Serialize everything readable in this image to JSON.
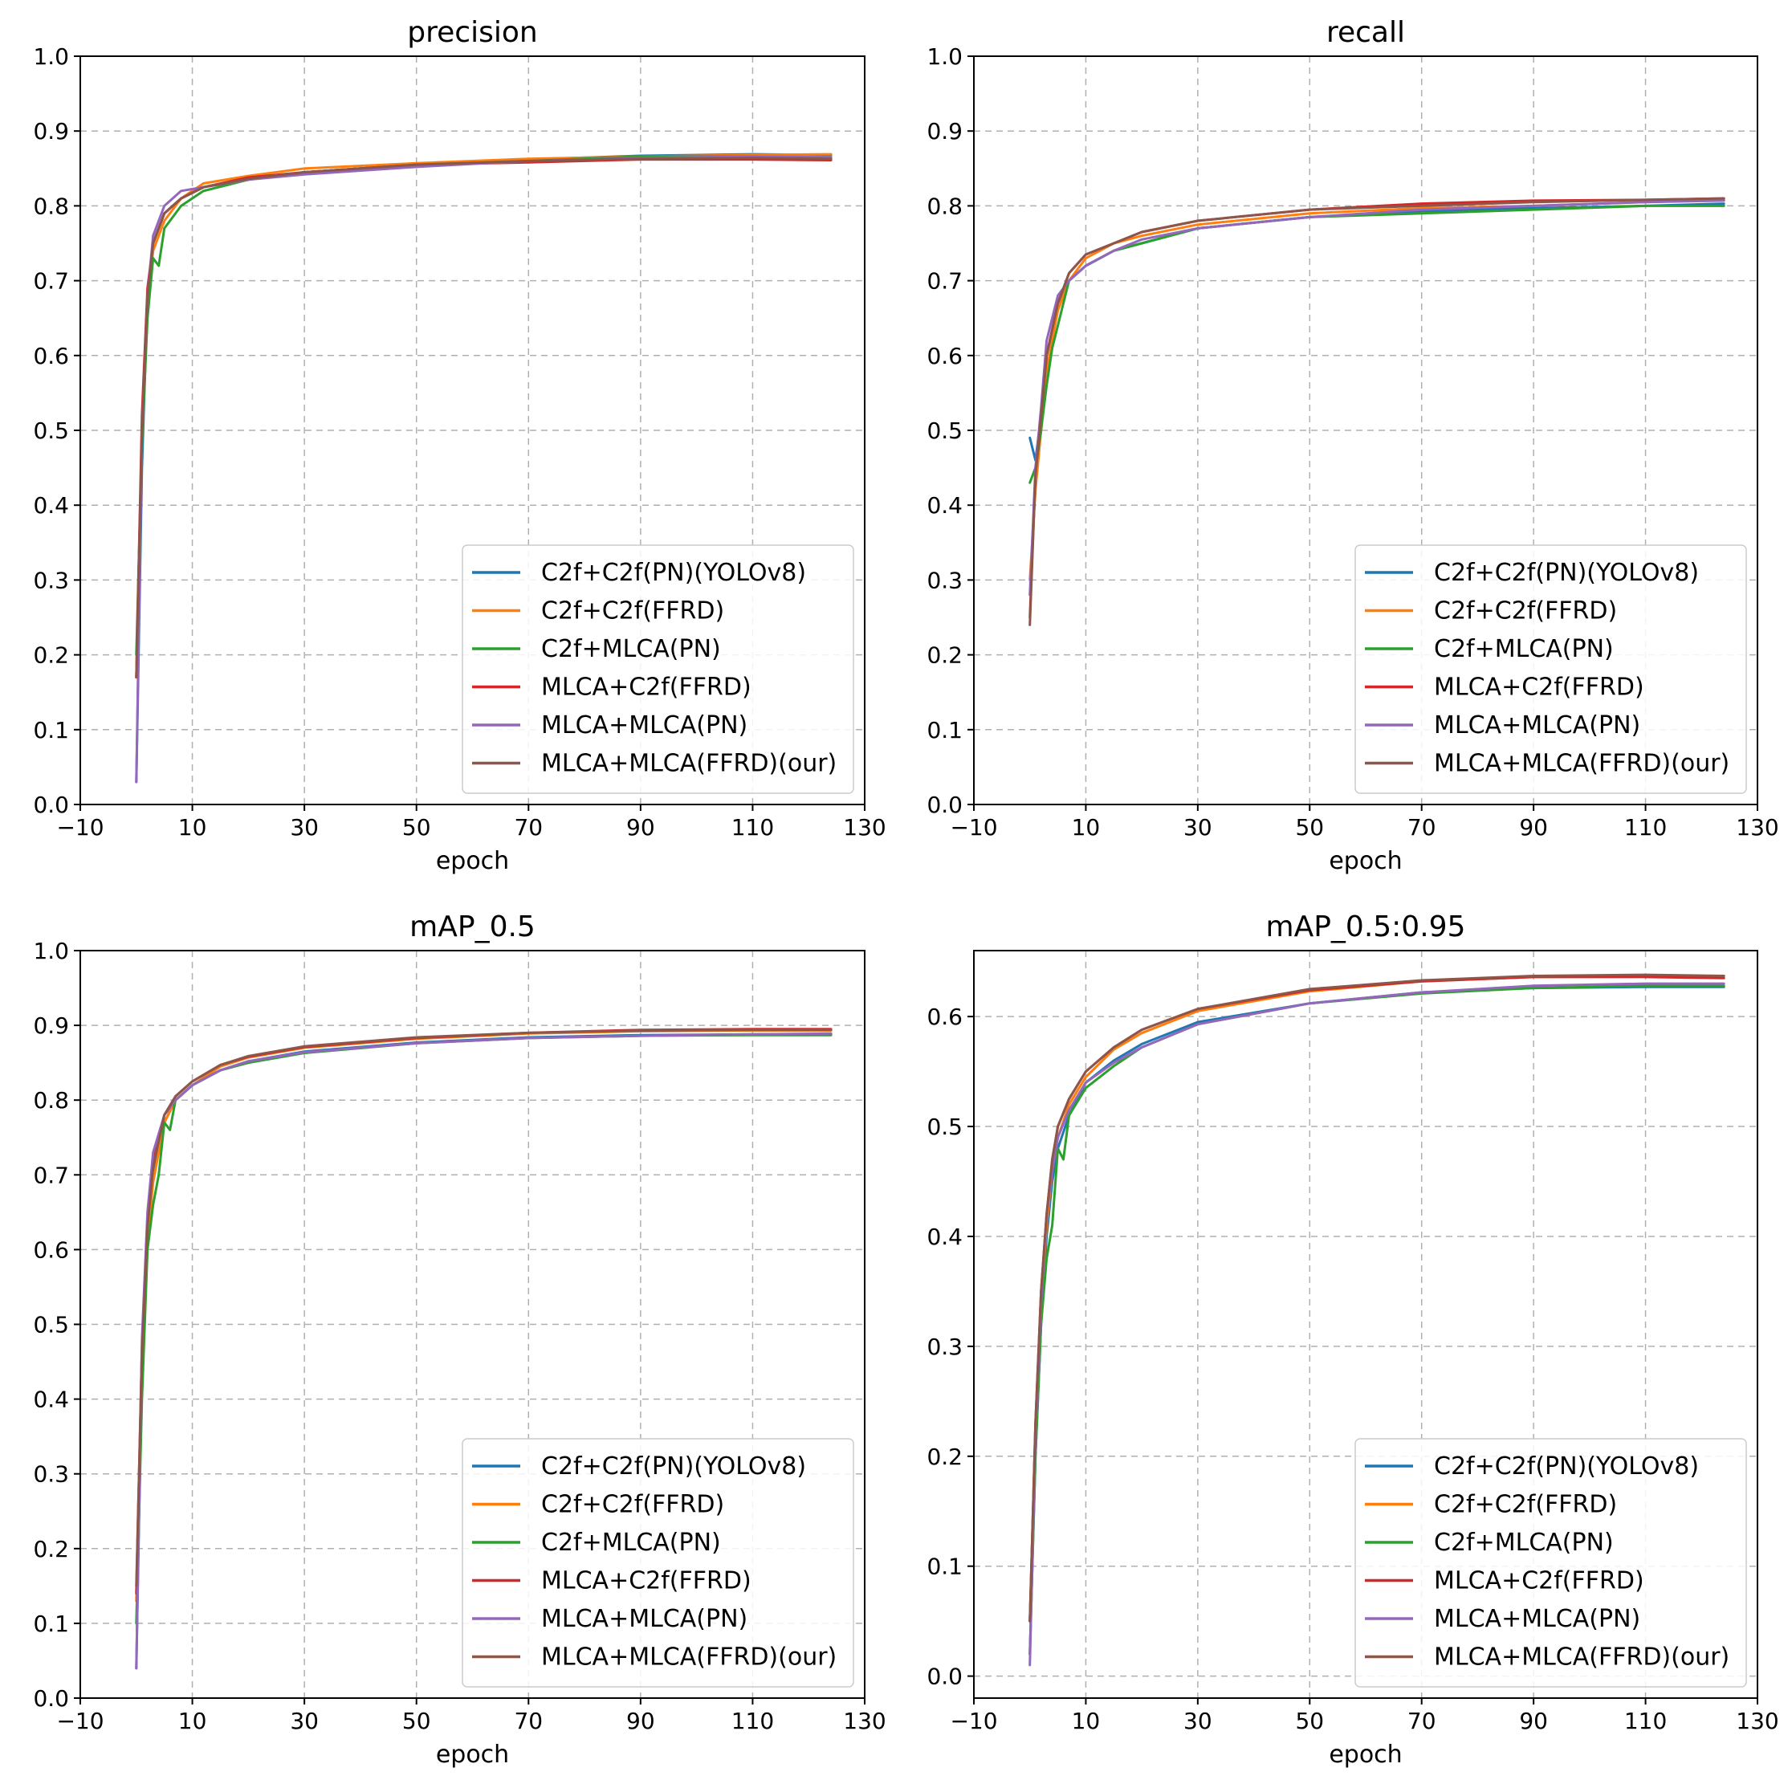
{
  "chart_data": [
    {
      "type": "line",
      "title": "precision",
      "xlabel": "epoch",
      "ylabel": "",
      "xlim": [
        -10,
        130
      ],
      "ylim": [
        0.0,
        1.0
      ],
      "xticks": [
        "−10",
        "10",
        "30",
        "50",
        "70",
        "90",
        "110",
        "130"
      ],
      "yticks": [
        "0.0",
        "0.1",
        "0.2",
        "0.3",
        "0.4",
        "0.5",
        "0.6",
        "0.7",
        "0.8",
        "0.9",
        "1.0"
      ],
      "grid": true,
      "legend": "lower-right",
      "series": [
        {
          "name": "C2f+C2f(PN)(YOLOv8)",
          "color": "#1f77b4",
          "x": [
            0,
            1,
            2,
            3,
            5,
            8,
            12,
            20,
            30,
            50,
            70,
            90,
            110,
            124
          ],
          "y": [
            0.03,
            0.45,
            0.68,
            0.75,
            0.79,
            0.81,
            0.825,
            0.835,
            0.845,
            0.855,
            0.862,
            0.867,
            0.869,
            0.868
          ]
        },
        {
          "name": "C2f+C2f(FFRD)",
          "color": "#ff7f0e",
          "x": [
            0,
            1,
            2,
            3,
            5,
            8,
            12,
            20,
            30,
            50,
            70,
            90,
            110,
            124
          ],
          "y": [
            0.17,
            0.5,
            0.67,
            0.74,
            0.78,
            0.81,
            0.83,
            0.84,
            0.85,
            0.857,
            0.863,
            0.866,
            0.868,
            0.869
          ]
        },
        {
          "name": "C2f+MLCA(PN)",
          "color": "#2ca02c",
          "x": [
            0,
            1,
            2,
            3,
            4,
            5,
            8,
            12,
            20,
            30,
            50,
            70,
            90,
            110,
            124
          ],
          "y": [
            0.2,
            0.48,
            0.65,
            0.73,
            0.72,
            0.77,
            0.8,
            0.82,
            0.835,
            0.845,
            0.855,
            0.86,
            0.866,
            0.866,
            0.865
          ]
        },
        {
          "name": "MLCA+C2f(FFRD)",
          "color": "#d62728",
          "x": [
            0,
            1,
            2,
            3,
            5,
            8,
            12,
            20,
            30,
            50,
            70,
            90,
            110,
            124
          ],
          "y": [
            0.17,
            0.52,
            0.69,
            0.75,
            0.79,
            0.81,
            0.825,
            0.838,
            0.845,
            0.855,
            0.858,
            0.862,
            0.862,
            0.861
          ]
        },
        {
          "name": "MLCA+MLCA(PN)",
          "color": "#9467bd",
          "x": [
            0,
            1,
            2,
            3,
            5,
            8,
            12,
            20,
            30,
            50,
            70,
            90,
            110,
            124
          ],
          "y": [
            0.03,
            0.5,
            0.68,
            0.76,
            0.8,
            0.82,
            0.825,
            0.835,
            0.842,
            0.852,
            0.86,
            0.864,
            0.866,
            0.865
          ]
        },
        {
          "name": "MLCA+MLCA(FFRD)(our)",
          "color": "#8c564b",
          "x": [
            0,
            1,
            2,
            3,
            5,
            8,
            12,
            20,
            30,
            50,
            70,
            90,
            110,
            124
          ],
          "y": [
            0.17,
            0.5,
            0.68,
            0.75,
            0.79,
            0.81,
            0.825,
            0.836,
            0.845,
            0.855,
            0.86,
            0.863,
            0.864,
            0.863
          ]
        }
      ]
    },
    {
      "type": "line",
      "title": "recall",
      "xlabel": "epoch",
      "ylabel": "",
      "xlim": [
        -10,
        130
      ],
      "ylim": [
        0.0,
        1.0
      ],
      "xticks": [
        "−10",
        "10",
        "30",
        "50",
        "70",
        "90",
        "110",
        "130"
      ],
      "yticks": [
        "0.0",
        "0.1",
        "0.2",
        "0.3",
        "0.4",
        "0.5",
        "0.6",
        "0.7",
        "0.8",
        "0.9",
        "1.0"
      ],
      "grid": true,
      "legend": "lower-right",
      "series": [
        {
          "name": "C2f+C2f(PN)(YOLOv8)",
          "color": "#1f77b4",
          "x": [
            0,
            1,
            2,
            3,
            5,
            7,
            10,
            15,
            20,
            30,
            50,
            70,
            90,
            110,
            124
          ],
          "y": [
            0.49,
            0.46,
            0.52,
            0.6,
            0.67,
            0.7,
            0.72,
            0.74,
            0.75,
            0.77,
            0.785,
            0.793,
            0.797,
            0.8,
            0.803
          ]
        },
        {
          "name": "C2f+C2f(FFRD)",
          "color": "#ff7f0e",
          "x": [
            0,
            1,
            2,
            3,
            5,
            7,
            10,
            15,
            20,
            30,
            50,
            70,
            90,
            110,
            124
          ],
          "y": [
            0.3,
            0.42,
            0.5,
            0.58,
            0.66,
            0.7,
            0.73,
            0.75,
            0.76,
            0.775,
            0.79,
            0.797,
            0.8,
            0.805,
            0.808
          ]
        },
        {
          "name": "C2f+MLCA(PN)",
          "color": "#2ca02c",
          "x": [
            0,
            1,
            2,
            3,
            4,
            5,
            6,
            7,
            10,
            15,
            20,
            30,
            50,
            70,
            90,
            110,
            124
          ],
          "y": [
            0.43,
            0.45,
            0.5,
            0.56,
            0.61,
            0.64,
            0.67,
            0.7,
            0.72,
            0.74,
            0.75,
            0.77,
            0.785,
            0.79,
            0.795,
            0.8,
            0.8
          ]
        },
        {
          "name": "MLCA+C2f(FFRD)",
          "color": "#d62728",
          "x": [
            0,
            1,
            2,
            3,
            5,
            7,
            10,
            15,
            20,
            30,
            50,
            70,
            90,
            110,
            124
          ],
          "y": [
            0.25,
            0.44,
            0.52,
            0.6,
            0.67,
            0.71,
            0.735,
            0.75,
            0.765,
            0.78,
            0.795,
            0.803,
            0.807,
            0.808,
            0.81
          ]
        },
        {
          "name": "MLCA+MLCA(PN)",
          "color": "#9467bd",
          "x": [
            0,
            1,
            2,
            3,
            5,
            7,
            10,
            15,
            20,
            30,
            50,
            70,
            90,
            110,
            124
          ],
          "y": [
            0.28,
            0.45,
            0.53,
            0.62,
            0.68,
            0.7,
            0.72,
            0.74,
            0.755,
            0.77,
            0.785,
            0.795,
            0.8,
            0.805,
            0.807
          ]
        },
        {
          "name": "MLCA+MLCA(FFRD)(our)",
          "color": "#8c564b",
          "x": [
            0,
            1,
            2,
            3,
            5,
            7,
            10,
            15,
            20,
            30,
            50,
            70,
            90,
            110,
            124
          ],
          "y": [
            0.24,
            0.44,
            0.52,
            0.6,
            0.67,
            0.71,
            0.735,
            0.75,
            0.765,
            0.78,
            0.795,
            0.8,
            0.805,
            0.808,
            0.81
          ]
        }
      ]
    },
    {
      "type": "line",
      "title": "mAP_0.5",
      "xlabel": "epoch",
      "ylabel": "",
      "xlim": [
        -10,
        130
      ],
      "ylim": [
        0.0,
        1.0
      ],
      "xticks": [
        "−10",
        "10",
        "30",
        "50",
        "70",
        "90",
        "110",
        "130"
      ],
      "yticks": [
        "0.0",
        "0.1",
        "0.2",
        "0.3",
        "0.4",
        "0.5",
        "0.6",
        "0.7",
        "0.8",
        "0.9",
        "1.0"
      ],
      "grid": true,
      "legend": "lower-right",
      "series": [
        {
          "name": "C2f+C2f(PN)(YOLOv8)",
          "color": "#1f77b4",
          "x": [
            0,
            1,
            2,
            3,
            5,
            7,
            10,
            15,
            20,
            30,
            50,
            70,
            90,
            110,
            124
          ],
          "y": [
            0.04,
            0.45,
            0.63,
            0.7,
            0.77,
            0.8,
            0.82,
            0.84,
            0.852,
            0.865,
            0.877,
            0.884,
            0.887,
            0.888,
            0.888
          ]
        },
        {
          "name": "C2f+C2f(FFRD)",
          "color": "#ff7f0e",
          "x": [
            0,
            1,
            2,
            3,
            5,
            7,
            10,
            15,
            20,
            30,
            50,
            70,
            90,
            110,
            124
          ],
          "y": [
            0.13,
            0.43,
            0.61,
            0.69,
            0.77,
            0.8,
            0.82,
            0.845,
            0.857,
            0.87,
            0.882,
            0.889,
            0.892,
            0.893,
            0.893
          ]
        },
        {
          "name": "C2f+MLCA(PN)",
          "color": "#2ca02c",
          "x": [
            0,
            1,
            2,
            3,
            4,
            5,
            6,
            7,
            10,
            15,
            20,
            30,
            50,
            70,
            90,
            110,
            124
          ],
          "y": [
            0.1,
            0.4,
            0.6,
            0.66,
            0.7,
            0.77,
            0.76,
            0.8,
            0.82,
            0.84,
            0.85,
            0.863,
            0.876,
            0.883,
            0.886,
            0.887,
            0.887
          ]
        },
        {
          "name": "MLCA+C2f(FFRD)",
          "color": "#d62728",
          "x": [
            0,
            1,
            2,
            3,
            5,
            7,
            10,
            15,
            20,
            30,
            50,
            70,
            90,
            110,
            124
          ],
          "y": [
            0.14,
            0.47,
            0.64,
            0.72,
            0.78,
            0.805,
            0.825,
            0.847,
            0.858,
            0.871,
            0.883,
            0.89,
            0.894,
            0.895,
            0.895
          ]
        },
        {
          "name": "MLCA+MLCA(PN)",
          "color": "#9467bd",
          "x": [
            0,
            1,
            2,
            3,
            5,
            7,
            10,
            15,
            20,
            30,
            50,
            70,
            90,
            110,
            124
          ],
          "y": [
            0.04,
            0.48,
            0.65,
            0.73,
            0.78,
            0.8,
            0.82,
            0.84,
            0.852,
            0.864,
            0.876,
            0.883,
            0.886,
            0.888,
            0.889
          ]
        },
        {
          "name": "MLCA+MLCA(FFRD)(our)",
          "color": "#8c564b",
          "x": [
            0,
            1,
            2,
            3,
            5,
            7,
            10,
            15,
            20,
            30,
            50,
            70,
            90,
            110,
            124
          ],
          "y": [
            0.15,
            0.46,
            0.63,
            0.71,
            0.78,
            0.805,
            0.825,
            0.847,
            0.859,
            0.872,
            0.884,
            0.89,
            0.893,
            0.894,
            0.894
          ]
        }
      ]
    },
    {
      "type": "line",
      "title": "mAP_0.5:0.95",
      "xlabel": "epoch",
      "ylabel": "",
      "xlim": [
        -10,
        130
      ],
      "ylim": [
        -0.02,
        0.66
      ],
      "xticks": [
        "−10",
        "10",
        "30",
        "50",
        "70",
        "90",
        "110",
        "130"
      ],
      "yticks": [
        "0.0",
        "0.1",
        "0.2",
        "0.3",
        "0.4",
        "0.5",
        "0.6"
      ],
      "grid": true,
      "legend": "lower-right",
      "series": [
        {
          "name": "C2f+C2f(PN)(YOLOv8)",
          "color": "#1f77b4",
          "x": [
            0,
            1,
            2,
            3,
            4,
            5,
            7,
            10,
            15,
            20,
            30,
            50,
            70,
            90,
            110,
            124
          ],
          "y": [
            0.02,
            0.2,
            0.32,
            0.4,
            0.45,
            0.48,
            0.51,
            0.54,
            0.56,
            0.575,
            0.595,
            0.612,
            0.622,
            0.626,
            0.627,
            0.627
          ]
        },
        {
          "name": "C2f+C2f(FFRD)",
          "color": "#ff7f0e",
          "x": [
            0,
            1,
            2,
            3,
            4,
            5,
            7,
            10,
            15,
            20,
            30,
            50,
            70,
            90,
            110,
            124
          ],
          "y": [
            0.05,
            0.22,
            0.34,
            0.41,
            0.46,
            0.49,
            0.52,
            0.545,
            0.57,
            0.585,
            0.605,
            0.623,
            0.632,
            0.636,
            0.637,
            0.637
          ]
        },
        {
          "name": "C2f+MLCA(PN)",
          "color": "#2ca02c",
          "x": [
            0,
            1,
            2,
            3,
            4,
            5,
            6,
            7,
            10,
            15,
            20,
            30,
            50,
            70,
            90,
            110,
            124
          ],
          "y": [
            0.02,
            0.2,
            0.32,
            0.38,
            0.41,
            0.48,
            0.47,
            0.51,
            0.535,
            0.555,
            0.572,
            0.593,
            0.612,
            0.621,
            0.626,
            0.628,
            0.628
          ]
        },
        {
          "name": "MLCA+C2f(FFRD)",
          "color": "#d62728",
          "x": [
            0,
            1,
            2,
            3,
            4,
            5,
            7,
            10,
            15,
            20,
            30,
            50,
            70,
            90,
            110,
            124
          ],
          "y": [
            0.05,
            0.23,
            0.35,
            0.42,
            0.47,
            0.5,
            0.525,
            0.55,
            0.572,
            0.588,
            0.607,
            0.624,
            0.632,
            0.636,
            0.636,
            0.635
          ]
        },
        {
          "name": "MLCA+MLCA(PN)",
          "color": "#9467bd",
          "x": [
            0,
            1,
            2,
            3,
            4,
            5,
            7,
            10,
            15,
            20,
            30,
            50,
            70,
            90,
            110,
            124
          ],
          "y": [
            0.01,
            0.22,
            0.34,
            0.42,
            0.46,
            0.49,
            0.515,
            0.54,
            0.558,
            0.572,
            0.593,
            0.612,
            0.622,
            0.628,
            0.63,
            0.63
          ]
        },
        {
          "name": "MLCA+MLCA(FFRD)(our)",
          "color": "#8c564b",
          "x": [
            0,
            1,
            2,
            3,
            4,
            5,
            7,
            10,
            15,
            20,
            30,
            50,
            70,
            90,
            110,
            124
          ],
          "y": [
            0.05,
            0.23,
            0.35,
            0.42,
            0.47,
            0.5,
            0.525,
            0.55,
            0.572,
            0.588,
            0.607,
            0.625,
            0.633,
            0.637,
            0.638,
            0.637
          ]
        }
      ]
    }
  ]
}
